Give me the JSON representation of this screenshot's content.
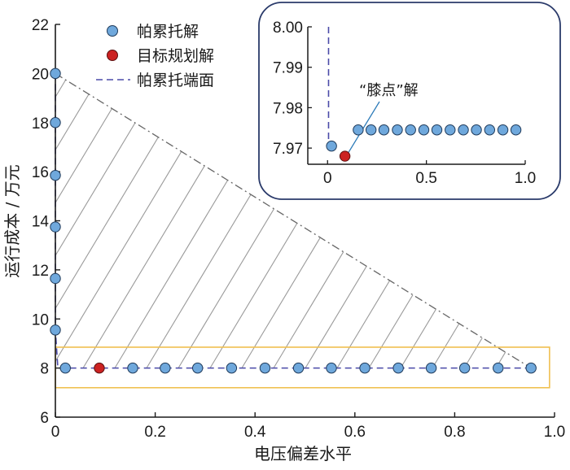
{
  "chart_data": {
    "type": "scatter",
    "xlabel": "电压偏差水平",
    "ylabel": "运行成本 / 万元",
    "xlim": [
      0,
      1.0
    ],
    "ylim": [
      6,
      22
    ],
    "x_ticks": [
      "0",
      "0.2",
      "0.4",
      "0.6",
      "0.8",
      "1.0"
    ],
    "y_ticks": [
      "6",
      "8",
      "10",
      "12",
      "14",
      "16",
      "18",
      "20",
      "22"
    ],
    "grid": false,
    "legend_position": "top-center",
    "legend": [
      {
        "label": "帕累托解",
        "marker": "circle",
        "color": "#6fa8dc"
      },
      {
        "label": "目标规划解",
        "marker": "circle",
        "color": "#cc2222"
      },
      {
        "label": "帕累托端面",
        "marker": "dashed-line",
        "color": "#4a4aa8"
      }
    ],
    "series": [
      {
        "name": "帕累托解",
        "color": "#6fa8dc",
        "points": [
          [
            0,
            20.0
          ],
          [
            0,
            18.0
          ],
          [
            0,
            15.85
          ],
          [
            0,
            13.75
          ],
          [
            0,
            11.65
          ],
          [
            0,
            9.55
          ],
          [
            0.02,
            8.0
          ],
          [
            0.155,
            8.0
          ],
          [
            0.22,
            8.0
          ],
          [
            0.285,
            8.0
          ],
          [
            0.353,
            8.0
          ],
          [
            0.42,
            8.0
          ],
          [
            0.487,
            8.0
          ],
          [
            0.553,
            8.0
          ],
          [
            0.62,
            8.0
          ],
          [
            0.687,
            8.0
          ],
          [
            0.753,
            8.0
          ],
          [
            0.82,
            8.0
          ],
          [
            0.887,
            8.0
          ],
          [
            0.953,
            8.0
          ]
        ]
      },
      {
        "name": "目标规划解",
        "color": "#cc2222",
        "points": [
          [
            0.088,
            8.0
          ]
        ]
      }
    ],
    "pareto_front": [
      [
        0,
        20.0
      ],
      [
        0,
        9.55
      ],
      [
        0.005,
        8.0
      ],
      [
        0.953,
        8.0
      ]
    ],
    "dominated_region_boundary": [
      [
        0,
        20.0
      ],
      [
        0.953,
        8.0
      ]
    ],
    "highlight_box": {
      "x": [
        0,
        0.99
      ],
      "y": [
        7.2,
        8.85
      ],
      "color": "#f0c050"
    },
    "inset": {
      "xlim": [
        -0.1,
        1.0
      ],
      "ylim": [
        7.966,
        8.0
      ],
      "x_ticks": [
        "0",
        "0.5",
        "1.0"
      ],
      "y_ticks": [
        "7.97",
        "7.98",
        "7.99",
        "8.00"
      ],
      "annotation": "“膝点”解",
      "pareto_points": [
        [
          0.02,
          7.9705
        ],
        [
          0.155,
          7.9745
        ],
        [
          0.22,
          7.9745
        ],
        [
          0.285,
          7.9745
        ],
        [
          0.353,
          7.9745
        ],
        [
          0.42,
          7.9745
        ],
        [
          0.487,
          7.9745
        ],
        [
          0.553,
          7.9745
        ],
        [
          0.62,
          7.9745
        ],
        [
          0.687,
          7.9745
        ],
        [
          0.753,
          7.9745
        ],
        [
          0.82,
          7.9745
        ],
        [
          0.887,
          7.9745
        ],
        [
          0.953,
          7.9745
        ]
      ],
      "knee_point": [
        0.088,
        7.968
      ],
      "front_vertical": {
        "x": 0.005,
        "y": [
          7.97,
          8.0
        ]
      }
    }
  }
}
